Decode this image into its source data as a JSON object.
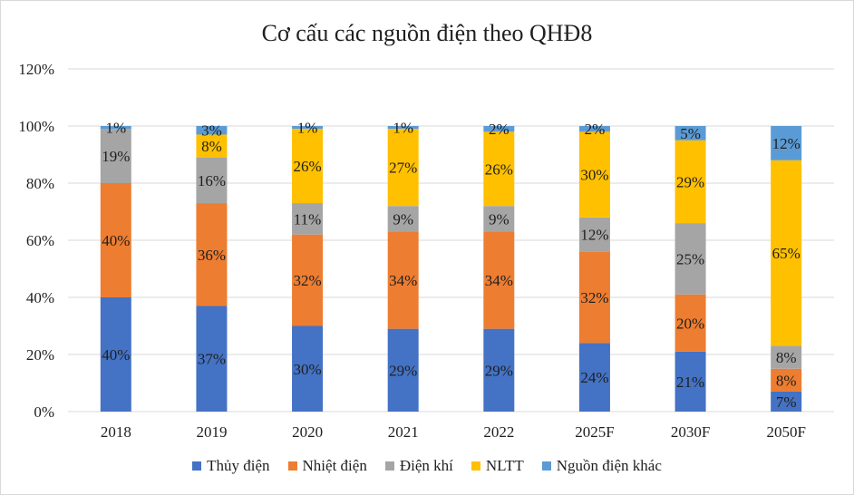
{
  "chart_data": {
    "type": "bar",
    "stacked": true,
    "title": "Cơ cấu các nguồn điện theo QHĐ8",
    "categories": [
      "2018",
      "2019",
      "2020",
      "2021",
      "2022",
      "2025F",
      "2030F",
      "2050F"
    ],
    "yticks": [
      "0%",
      "20%",
      "40%",
      "60%",
      "80%",
      "100%",
      "120%"
    ],
    "ylim": [
      0,
      120
    ],
    "grid": true,
    "legend_position": "bottom",
    "series": [
      {
        "name": "Thủy điện",
        "color": "#4472c4",
        "values": [
          40,
          37,
          30,
          29,
          29,
          24,
          21,
          7
        ],
        "labels": [
          "40%",
          "37%",
          "30%",
          "29%",
          "29%",
          "24%",
          "21%",
          "7%"
        ]
      },
      {
        "name": "Nhiệt điện",
        "color": "#ed7d31",
        "values": [
          40,
          36,
          32,
          34,
          34,
          32,
          20,
          8
        ],
        "labels": [
          "40%",
          "36%",
          "32%",
          "34%",
          "34%",
          "32%",
          "20%",
          "8%"
        ]
      },
      {
        "name": "Điện khí",
        "color": "#a5a5a5",
        "values": [
          19,
          16,
          11,
          9,
          9,
          12,
          25,
          8
        ],
        "labels": [
          "19%",
          "16%",
          "11%",
          "9%",
          "9%",
          "12%",
          "25%",
          "8%"
        ]
      },
      {
        "name": "NLTT",
        "color": "#ffc000",
        "values": [
          0,
          8,
          26,
          27,
          26,
          30,
          29,
          65
        ],
        "labels": [
          "",
          "8%",
          "26%",
          "27%",
          "26%",
          "30%",
          "29%",
          "65%"
        ]
      },
      {
        "name": "Nguồn điện khác",
        "color": "#5b9bd5",
        "values": [
          1,
          3,
          1,
          1,
          2,
          2,
          5,
          12
        ],
        "labels": [
          "1%",
          "3%",
          "1%",
          "1%",
          "2%",
          "2%",
          "5%",
          "12%"
        ]
      }
    ]
  }
}
